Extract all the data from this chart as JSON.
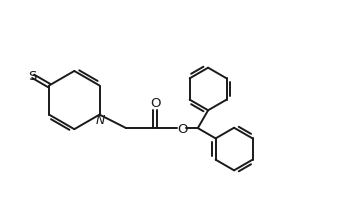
{
  "bg_color": "#ffffff",
  "line_color": "#1a1a1a",
  "line_width": 1.4,
  "fig_width": 3.58,
  "fig_height": 2.09,
  "dpi": 100,
  "xlim": [
    0,
    10
  ],
  "ylim": [
    0,
    5.85
  ]
}
